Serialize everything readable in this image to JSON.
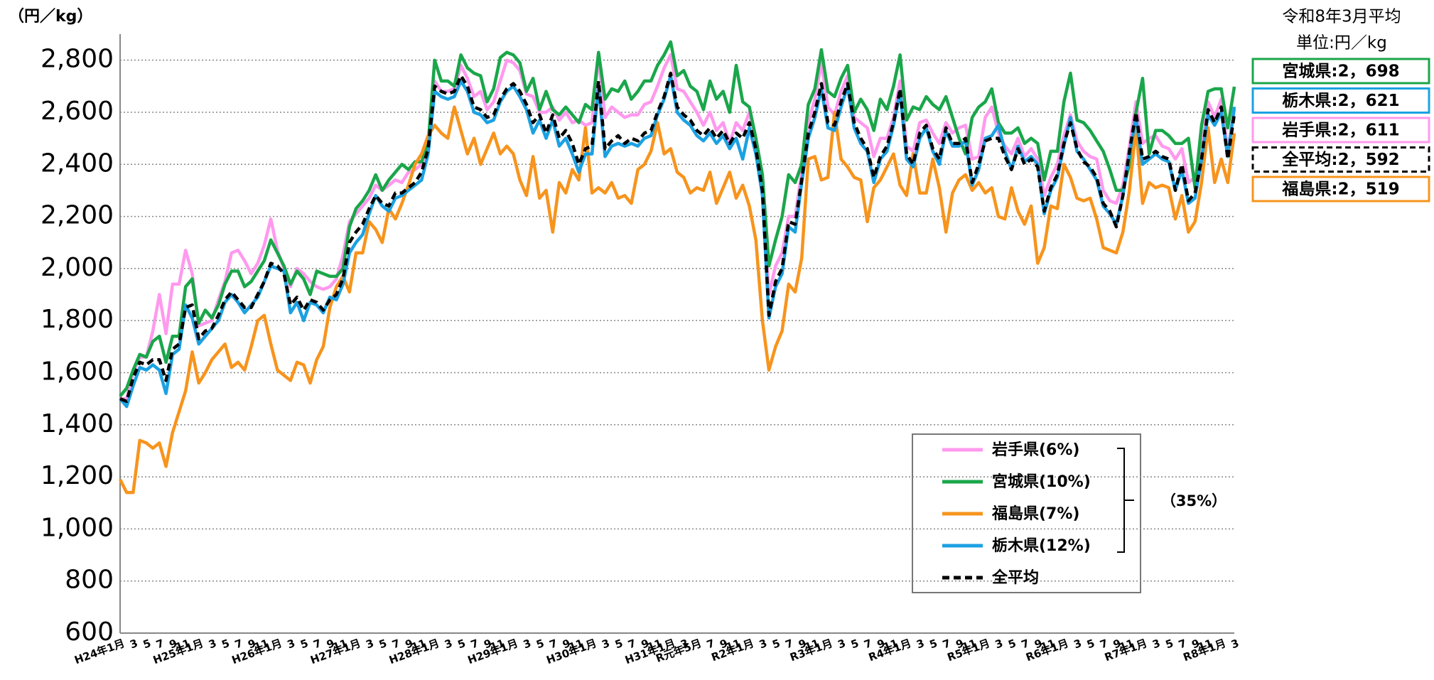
{
  "chart_data": {
    "type": "line",
    "y_label": "（円／kg）",
    "categories": [
      "H24年1月",
      null,
      "3",
      null,
      "5",
      null,
      "7",
      null,
      "9",
      null,
      "11",
      null,
      "H25年1月",
      null,
      "3",
      null,
      "5",
      null,
      "7",
      null,
      "9",
      null,
      "11",
      null,
      "H26年1月",
      null,
      "3",
      null,
      "5",
      null,
      "7",
      null,
      "9",
      null,
      "11",
      null,
      "H27年1月",
      null,
      "3",
      null,
      "5",
      null,
      "7",
      null,
      "9",
      null,
      "11",
      null,
      "H28年1月",
      null,
      "3",
      null,
      "5",
      null,
      "7",
      null,
      "9",
      null,
      "11",
      null,
      "H29年1月",
      null,
      "3",
      null,
      "5",
      null,
      "7",
      null,
      "9",
      null,
      "11",
      null,
      "H30年1月",
      null,
      "3",
      null,
      "5",
      null,
      "7",
      null,
      "9",
      null,
      "11",
      null,
      "H31年1月",
      null,
      "3",
      null,
      "R元年5月",
      null,
      "7",
      null,
      "9",
      null,
      "11",
      null,
      "R2年1月",
      null,
      "3",
      null,
      "5",
      null,
      "7",
      null,
      "9",
      null,
      "11",
      null,
      "R3年1月",
      null,
      "3",
      null,
      "5",
      null,
      "7",
      null,
      "9",
      null,
      "11",
      null,
      "R4年1月",
      null,
      "3",
      null,
      "5",
      null,
      "7",
      null,
      "9",
      null,
      "11",
      null,
      "R5年1月",
      null,
      "3",
      null,
      "5",
      null,
      "7",
      null,
      "9",
      null,
      "11",
      null,
      "R6年1月",
      null,
      "3",
      null,
      "5",
      null,
      "7",
      null,
      "9",
      null,
      "11",
      null,
      "R7年1月",
      null,
      "3",
      null,
      "5",
      null,
      "7",
      null,
      "9",
      null,
      "11",
      null,
      "R8年1月",
      null,
      "3"
    ],
    "series": [
      {
        "name": "岩手県(6%)",
        "color": "#ff99ee",
        "dashed": false,
        "values": [
          1500,
          1500,
          1600,
          1660,
          1660,
          1760,
          1900,
          1750,
          1940,
          1940,
          2070,
          1980,
          1780,
          1790,
          1800,
          1880,
          1950,
          2060,
          2070,
          2030,
          1980,
          2020,
          2090,
          2190,
          2070,
          2000,
          1930,
          2000,
          1980,
          1950,
          1930,
          1920,
          1930,
          1960,
          2050,
          2180,
          2210,
          2240,
          2270,
          2320,
          2300,
          2320,
          2340,
          2330,
          2370,
          2380,
          2400,
          2470,
          2720,
          2680,
          2680,
          2690,
          2780,
          2730,
          2660,
          2680,
          2610,
          2640,
          2720,
          2800,
          2790,
          2760,
          2670,
          2660,
          2600,
          2600,
          2620,
          2570,
          2600,
          2560,
          2570,
          2550,
          2560,
          2810,
          2580,
          2620,
          2600,
          2580,
          2590,
          2590,
          2630,
          2640,
          2700,
          2770,
          2820,
          2690,
          2680,
          2640,
          2600,
          2550,
          2600,
          2530,
          2560,
          2480,
          2560,
          2530,
          2600,
          2480,
          2320,
          1900,
          2010,
          2060,
          2200,
          2200,
          2370,
          2560,
          2650,
          2790,
          2620,
          2590,
          2680,
          2740,
          2580,
          2560,
          2540,
          2430,
          2500,
          2500,
          2580,
          2720,
          2470,
          2450,
          2560,
          2570,
          2520,
          2480,
          2560,
          2520,
          2540,
          2550,
          2420,
          2430,
          2580,
          2620,
          2520,
          2470,
          2440,
          2500,
          2430,
          2460,
          2420,
          2280,
          2350,
          2400,
          2510,
          2590,
          2490,
          2450,
          2430,
          2420,
          2300,
          2260,
          2250,
          2320,
          2470,
          2640,
          2480,
          2500,
          2510,
          2470,
          2460,
          2420,
          2460,
          2330,
          2350,
          2450,
          2640,
          2580,
          2650,
          2450,
          2611
        ]
      },
      {
        "name": "宮城県(10%)",
        "color": "#1aa64a",
        "dashed": false,
        "values": [
          1510,
          1540,
          1610,
          1670,
          1660,
          1720,
          1740,
          1640,
          1740,
          1740,
          1930,
          1960,
          1790,
          1840,
          1810,
          1860,
          1940,
          1990,
          1990,
          1930,
          1950,
          1990,
          2030,
          2110,
          2060,
          2010,
          1940,
          1990,
          1960,
          1900,
          1990,
          1980,
          1970,
          1970,
          2000,
          2160,
          2230,
          2260,
          2300,
          2360,
          2300,
          2340,
          2370,
          2400,
          2380,
          2410,
          2410,
          2480,
          2800,
          2720,
          2720,
          2700,
          2820,
          2770,
          2750,
          2740,
          2640,
          2690,
          2810,
          2830,
          2820,
          2790,
          2680,
          2730,
          2610,
          2680,
          2610,
          2590,
          2620,
          2590,
          2560,
          2630,
          2610,
          2830,
          2650,
          2690,
          2680,
          2720,
          2650,
          2680,
          2720,
          2720,
          2780,
          2820,
          2870,
          2740,
          2760,
          2700,
          2680,
          2610,
          2720,
          2650,
          2680,
          2600,
          2780,
          2640,
          2620,
          2500,
          2360,
          2010,
          2110,
          2200,
          2360,
          2330,
          2400,
          2630,
          2690,
          2840,
          2680,
          2660,
          2730,
          2780,
          2600,
          2650,
          2610,
          2530,
          2650,
          2610,
          2700,
          2820,
          2570,
          2620,
          2610,
          2660,
          2630,
          2610,
          2660,
          2580,
          2500,
          2440,
          2580,
          2620,
          2640,
          2690,
          2560,
          2520,
          2520,
          2540,
          2480,
          2500,
          2480,
          2340,
          2450,
          2450,
          2640,
          2750,
          2570,
          2560,
          2530,
          2490,
          2450,
          2380,
          2300,
          2300,
          2400,
          2600,
          2730,
          2440,
          2530,
          2530,
          2510,
          2480,
          2480,
          2500,
          2310,
          2550,
          2680,
          2690,
          2690,
          2540,
          2698
        ]
      },
      {
        "name": "福島県(7%)",
        "color": "#f7941d",
        "dashed": false,
        "values": [
          1190,
          1140,
          1140,
          1340,
          1330,
          1310,
          1330,
          1240,
          1370,
          1450,
          1530,
          1680,
          1560,
          1600,
          1650,
          1680,
          1710,
          1620,
          1640,
          1610,
          1700,
          1800,
          1820,
          1710,
          1610,
          1590,
          1570,
          1640,
          1630,
          1560,
          1650,
          1700,
          1850,
          1930,
          1970,
          1910,
          2060,
          2060,
          2180,
          2150,
          2100,
          2230,
          2190,
          2250,
          2320,
          2400,
          2440,
          2510,
          2550,
          2520,
          2500,
          2620,
          2530,
          2440,
          2500,
          2400,
          2460,
          2520,
          2440,
          2470,
          2440,
          2340,
          2280,
          2430,
          2270,
          2300,
          2140,
          2330,
          2290,
          2380,
          2340,
          2540,
          2290,
          2310,
          2290,
          2330,
          2270,
          2280,
          2250,
          2380,
          2400,
          2450,
          2560,
          2440,
          2460,
          2370,
          2350,
          2290,
          2310,
          2300,
          2370,
          2250,
          2310,
          2370,
          2270,
          2320,
          2240,
          2110,
          1800,
          1610,
          1700,
          1760,
          1940,
          1910,
          2040,
          2420,
          2430,
          2340,
          2350,
          2600,
          2420,
          2390,
          2350,
          2340,
          2180,
          2310,
          2340,
          2390,
          2440,
          2320,
          2280,
          2440,
          2290,
          2290,
          2420,
          2310,
          2140,
          2290,
          2340,
          2360,
          2300,
          2330,
          2290,
          2310,
          2200,
          2190,
          2310,
          2220,
          2170,
          2240,
          2020,
          2080,
          2240,
          2230,
          2400,
          2350,
          2270,
          2260,
          2270,
          2190,
          2080,
          2070,
          2060,
          2140,
          2300,
          2540,
          2250,
          2330,
          2310,
          2320,
          2310,
          2190,
          2280,
          2140,
          2180,
          2330,
          2540,
          2330,
          2420,
          2330,
          2519
        ]
      },
      {
        "name": "栃木県(12%)",
        "color": "#1ba1e2",
        "dashed": false,
        "values": [
          1500,
          1470,
          1550,
          1620,
          1610,
          1630,
          1610,
          1520,
          1670,
          1690,
          1860,
          1810,
          1710,
          1740,
          1770,
          1800,
          1870,
          1900,
          1870,
          1830,
          1860,
          1890,
          1950,
          2010,
          2000,
          1990,
          1830,
          1870,
          1800,
          1870,
          1860,
          1830,
          1890,
          1880,
          1940,
          2060,
          2100,
          2130,
          2210,
          2280,
          2240,
          2220,
          2270,
          2280,
          2300,
          2320,
          2340,
          2440,
          2680,
          2660,
          2650,
          2660,
          2720,
          2680,
          2600,
          2590,
          2560,
          2570,
          2640,
          2680,
          2700,
          2660,
          2610,
          2520,
          2570,
          2500,
          2570,
          2470,
          2500,
          2440,
          2370,
          2440,
          2440,
          2700,
          2430,
          2470,
          2480,
          2470,
          2480,
          2470,
          2500,
          2510,
          2590,
          2650,
          2740,
          2600,
          2570,
          2550,
          2510,
          2490,
          2520,
          2480,
          2510,
          2460,
          2500,
          2420,
          2540,
          2440,
          2280,
          1810,
          1930,
          1980,
          2160,
          2140,
          2330,
          2500,
          2580,
          2690,
          2540,
          2530,
          2620,
          2700,
          2540,
          2480,
          2450,
          2330,
          2420,
          2450,
          2550,
          2680,
          2420,
          2390,
          2500,
          2540,
          2450,
          2400,
          2530,
          2470,
          2470,
          2490,
          2320,
          2380,
          2500,
          2510,
          2550,
          2450,
          2380,
          2470,
          2410,
          2430,
          2400,
          2210,
          2300,
          2350,
          2470,
          2580,
          2450,
          2420,
          2380,
          2340,
          2240,
          2210,
          2170,
          2280,
          2440,
          2580,
          2400,
          2420,
          2440,
          2420,
          2410,
          2300,
          2380,
          2250,
          2270,
          2420,
          2590,
          2550,
          2600,
          2430,
          2621
        ]
      },
      {
        "name": "全平均",
        "color": "#000000",
        "dashed": true,
        "values": [
          1500,
          1490,
          1580,
          1640,
          1630,
          1650,
          1650,
          1570,
          1690,
          1710,
          1850,
          1860,
          1730,
          1760,
          1770,
          1820,
          1880,
          1910,
          1880,
          1850,
          1850,
          1900,
          1950,
          2020,
          2010,
          1980,
          1860,
          1890,
          1840,
          1880,
          1870,
          1840,
          1880,
          1900,
          1960,
          2100,
          2140,
          2170,
          2230,
          2280,
          2250,
          2240,
          2290,
          2290,
          2310,
          2330,
          2370,
          2460,
          2700,
          2680,
          2670,
          2680,
          2740,
          2700,
          2620,
          2610,
          2580,
          2590,
          2650,
          2690,
          2710,
          2680,
          2630,
          2560,
          2590,
          2520,
          2590,
          2500,
          2530,
          2480,
          2400,
          2460,
          2470,
          2720,
          2460,
          2490,
          2510,
          2480,
          2500,
          2490,
          2520,
          2530,
          2600,
          2660,
          2750,
          2620,
          2590,
          2570,
          2530,
          2510,
          2540,
          2500,
          2530,
          2480,
          2520,
          2500,
          2560,
          2460,
          2300,
          1820,
          1950,
          2000,
          2180,
          2170,
          2340,
          2520,
          2600,
          2710,
          2560,
          2550,
          2640,
          2710,
          2560,
          2500,
          2460,
          2350,
          2430,
          2470,
          2560,
          2690,
          2440,
          2400,
          2520,
          2550,
          2460,
          2420,
          2540,
          2480,
          2480,
          2500,
          2330,
          2400,
          2490,
          2500,
          2500,
          2430,
          2380,
          2460,
          2400,
          2420,
          2390,
          2220,
          2310,
          2360,
          2480,
          2560,
          2460,
          2410,
          2390,
          2350,
          2250,
          2220,
          2160,
          2280,
          2450,
          2600,
          2420,
          2430,
          2450,
          2430,
          2420,
          2300,
          2400,
          2260,
          2290,
          2420,
          2610,
          2560,
          2620,
          2420,
          2592
        ]
      }
    ],
    "ylim": [
      600,
      2900
    ],
    "yticks": [
      600,
      800,
      {
        "value": 1000,
        "label": "1,000"
      },
      {
        "value": 1200,
        "label": "1,200"
      },
      {
        "value": 1400,
        "label": "1,400"
      },
      {
        "value": 1600,
        "label": "1,600"
      },
      {
        "value": 1800,
        "label": "1,800"
      },
      {
        "value": 2000,
        "label": "2,000"
      },
      {
        "value": 2200,
        "label": "2,200"
      },
      {
        "value": 2400,
        "label": "2,400"
      },
      {
        "value": 2600,
        "label": "2,600"
      },
      {
        "value": 2800,
        "label": "2,800"
      }
    ],
    "grid": true,
    "legend_group_label": "（35%）",
    "summary": {
      "title": "令和8年3月平均",
      "unit": "単位:円／kg",
      "items": [
        {
          "text": "宮城県:2，698",
          "color": "#1aa64a",
          "dashed": false
        },
        {
          "text": "栃木県:2，621",
          "color": "#1ba1e2",
          "dashed": false
        },
        {
          "text": "岩手県:2，611",
          "color": "#ff99ee",
          "dashed": false
        },
        {
          "text": "全平均:2，592",
          "color": "#000000",
          "dashed": true
        },
        {
          "text": "福島県:2，519",
          "color": "#f7941d",
          "dashed": false
        }
      ]
    }
  }
}
